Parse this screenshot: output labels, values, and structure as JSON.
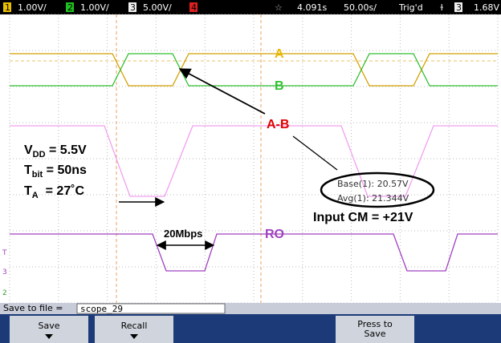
{
  "status_bar": {
    "ch1": "1",
    "ch1_scale": "1.00V/",
    "ch2": "2",
    "ch2_scale": "1.00V/",
    "ch3": "3",
    "ch3_scale": "5.00V/",
    "ch4": "4",
    "delay": "4.091s",
    "timebase": "50.00s/",
    "trigger": "Trig'd",
    "trigger_edge": "ɫ",
    "trigger_source": "3",
    "trigger_level": "1.68V"
  },
  "annotations": {
    "a": "A",
    "b": "B",
    "a_minus_b": "A-B",
    "ro": "RO",
    "rate": "20Mbps",
    "input_cm": "Input CM = +21V",
    "vdd": {
      "main": "V",
      "sub": "DD",
      "rest": " = 5.5V"
    },
    "tbit": {
      "main": "T",
      "sub": "bit",
      "rest": " = 50ns"
    },
    "ta": {
      "main": "T",
      "sub": "A",
      "rest": "  = 27˚C"
    }
  },
  "measurements": {
    "base": "Base(1): 20.57V",
    "avg": "Avg(1): 21.344V"
  },
  "markers": [
    "T",
    "3",
    "2"
  ],
  "bottom": {
    "save_label": "Save to file =",
    "filename": "scope_29",
    "softkeys": [
      "Save",
      "Recall",
      "Press to\nSave"
    ]
  }
}
